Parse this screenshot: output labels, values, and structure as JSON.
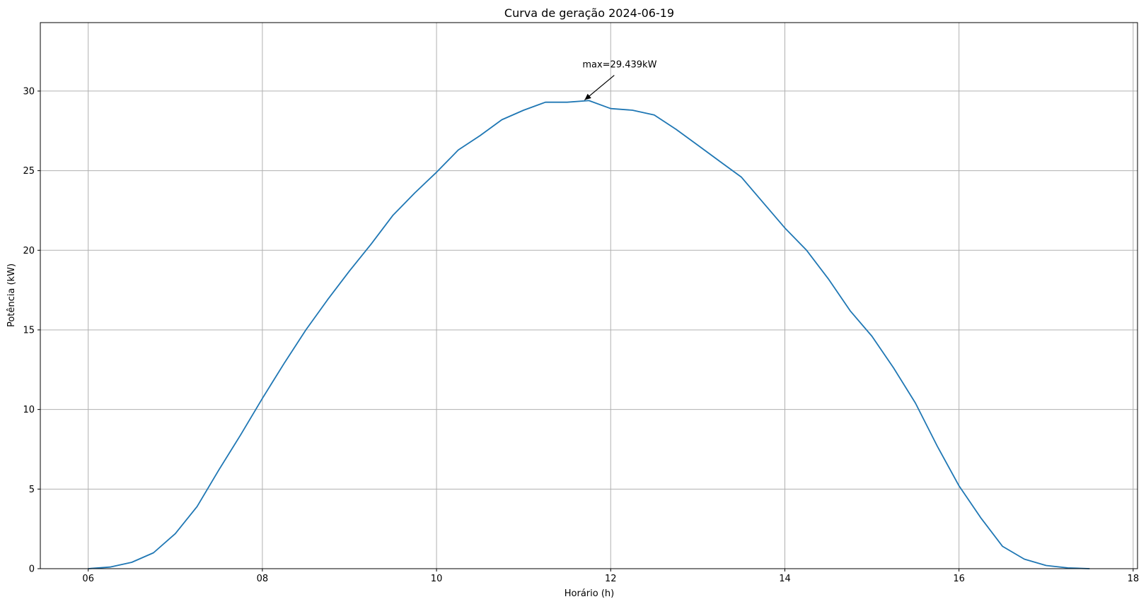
{
  "chart_data": {
    "type": "line",
    "title": "Curva de geração 2024-06-19",
    "xlabel": "Horário (h)",
    "ylabel": "Potência (kW)",
    "xlim": [
      5.45,
      18.05
    ],
    "ylim": [
      0,
      34.3
    ],
    "grid": true,
    "x_ticks": [
      6,
      8,
      10,
      12,
      14,
      16,
      18
    ],
    "x_tick_labels": [
      "06",
      "08",
      "10",
      "12",
      "14",
      "16",
      "18"
    ],
    "y_ticks": [
      0,
      5,
      10,
      15,
      20,
      25,
      30
    ],
    "y_tick_labels": [
      "0",
      "5",
      "10",
      "15",
      "20",
      "25",
      "30"
    ],
    "series": [
      {
        "color": "#1f77b4",
        "x": [
          6.0,
          6.25,
          6.5,
          6.75,
          7.0,
          7.25,
          7.5,
          7.75,
          8.0,
          8.25,
          8.5,
          8.75,
          9.0,
          9.25,
          9.5,
          9.75,
          10.0,
          10.25,
          10.5,
          10.75,
          11.0,
          11.25,
          11.5,
          11.75,
          12.0,
          12.25,
          12.5,
          12.75,
          13.0,
          13.25,
          13.5,
          13.75,
          14.0,
          14.25,
          14.5,
          14.75,
          15.0,
          15.25,
          15.5,
          15.75,
          16.0,
          16.25,
          16.5,
          16.75,
          17.0,
          17.25,
          17.5
        ],
        "y": [
          0.0,
          0.1,
          0.4,
          1.0,
          2.2,
          3.9,
          6.2,
          8.4,
          10.7,
          12.9,
          15.0,
          16.9,
          18.7,
          20.4,
          22.2,
          23.6,
          24.9,
          26.3,
          27.2,
          28.2,
          28.8,
          29.3,
          29.3,
          29.4,
          28.9,
          28.8,
          28.5,
          27.6,
          26.6,
          25.6,
          24.6,
          23.0,
          21.4,
          20.0,
          18.2,
          16.2,
          14.6,
          12.6,
          10.4,
          7.7,
          5.2,
          3.2,
          1.4,
          0.6,
          0.2,
          0.05,
          0.0
        ]
      }
    ],
    "annotation": {
      "text": "max=29.439kW",
      "x": 11.7,
      "y": 29.439
    }
  }
}
